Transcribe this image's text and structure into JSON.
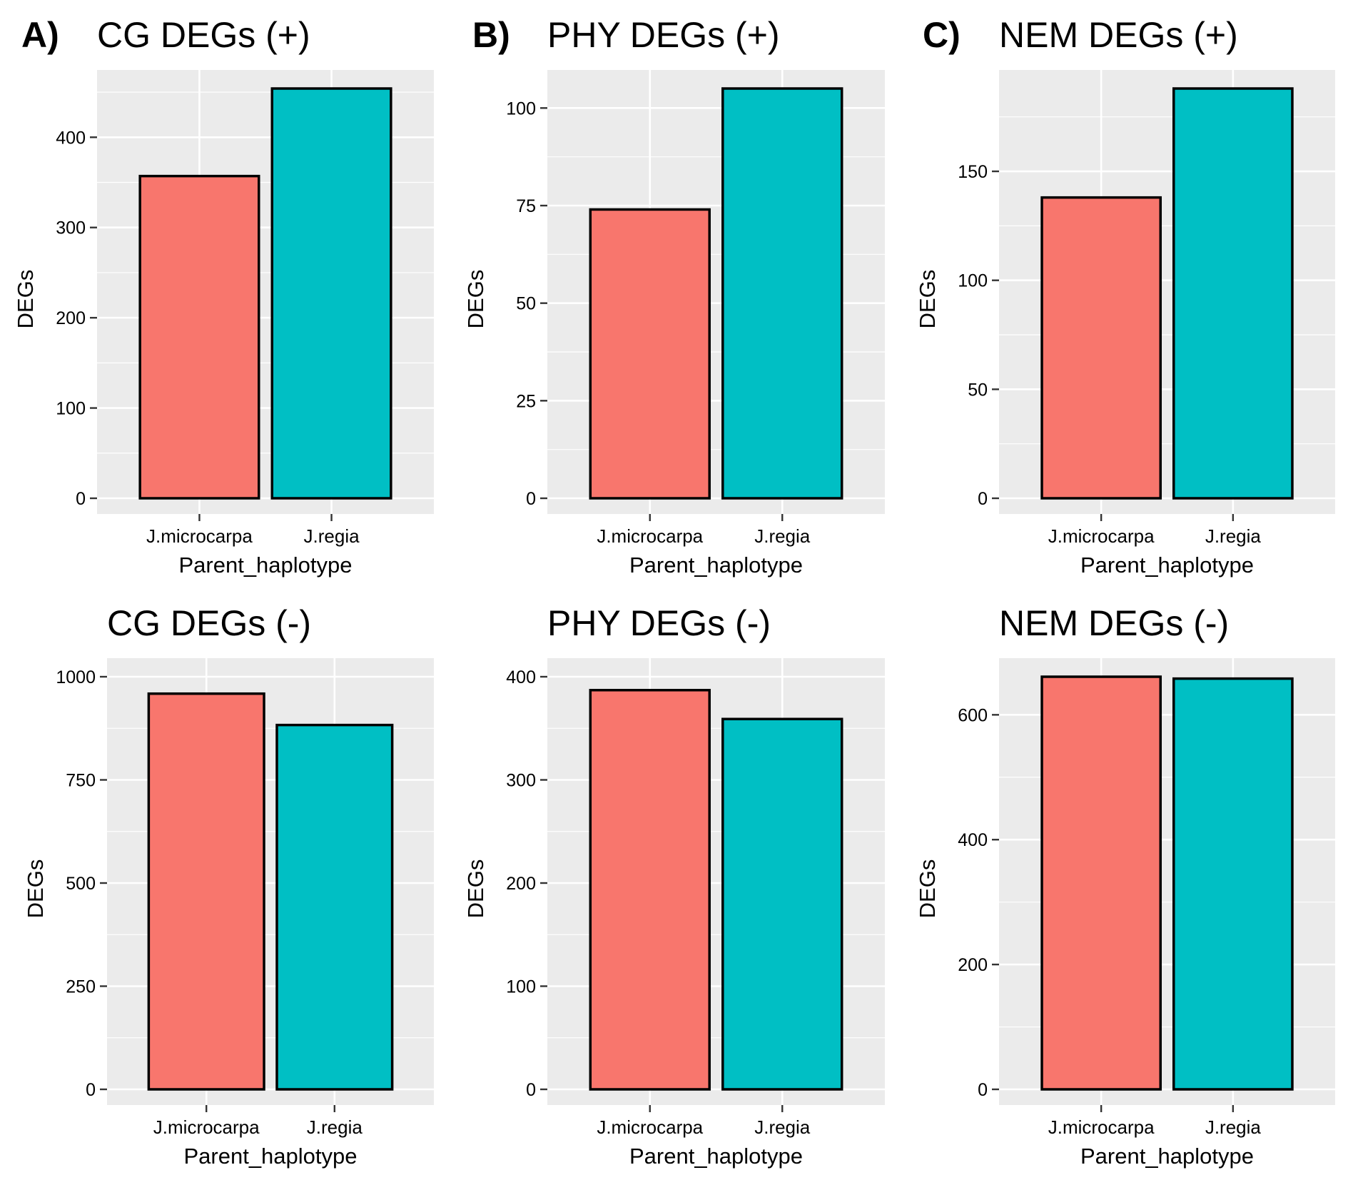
{
  "colors": {
    "panel_bg": "#EBEBEB",
    "grid": "#FFFFFF",
    "series_1": "#F8766D",
    "series_2": "#00BFC4",
    "bar_outline": "#000000"
  },
  "chart_data": [
    {
      "type": "bar",
      "panel_letter": "A)",
      "title": "CG DEGs (+)",
      "categories": [
        "J.microcarpa",
        "J.regia"
      ],
      "values": [
        357,
        454
      ],
      "xlabel": "Parent_haplotype",
      "ylabel": "DEGs",
      "ylim": [
        0,
        454
      ],
      "yticks": [
        0,
        100,
        200,
        300,
        400
      ],
      "grid": true
    },
    {
      "type": "bar",
      "panel_letter": "B)",
      "title": "PHY DEGs (+)",
      "categories": [
        "J.microcarpa",
        "J.regia"
      ],
      "values": [
        74,
        105
      ],
      "xlabel": "Parent_haplotype",
      "ylabel": "DEGs",
      "ylim": [
        0,
        105
      ],
      "yticks": [
        0,
        25,
        50,
        75,
        100
      ],
      "grid": true
    },
    {
      "type": "bar",
      "panel_letter": "C)",
      "title": "NEM DEGs (+)",
      "categories": [
        "J.microcarpa",
        "J.regia"
      ],
      "values": [
        138,
        188
      ],
      "xlabel": "Parent_haplotype",
      "ylabel": "DEGs",
      "ylim": [
        0,
        188
      ],
      "yticks": [
        0,
        50,
        100,
        150
      ],
      "grid": true
    },
    {
      "type": "bar",
      "panel_letter": "",
      "title": "CG DEGs (-)",
      "categories": [
        "J.microcarpa",
        "J.regia"
      ],
      "values": [
        959,
        883
      ],
      "xlabel": "Parent_haplotype",
      "ylabel": "DEGs",
      "ylim": [
        0,
        1000
      ],
      "yticks": [
        0,
        250,
        500,
        750,
        1000
      ],
      "grid": true
    },
    {
      "type": "bar",
      "panel_letter": "",
      "title": "PHY DEGs (-)",
      "categories": [
        "J.microcarpa",
        "J.regia"
      ],
      "values": [
        387,
        359
      ],
      "xlabel": "Parent_haplotype",
      "ylabel": "DEGs",
      "ylim": [
        0,
        400
      ],
      "yticks": [
        0,
        100,
        200,
        300,
        400
      ],
      "grid": true
    },
    {
      "type": "bar",
      "panel_letter": "",
      "title": "NEM DEGs (-)",
      "categories": [
        "J.microcarpa",
        "J.regia"
      ],
      "values": [
        661,
        658
      ],
      "xlabel": "Parent_haplotype",
      "ylabel": "DEGs",
      "ylim": [
        0,
        661
      ],
      "yticks": [
        0,
        200,
        400,
        600
      ],
      "grid": true
    }
  ]
}
